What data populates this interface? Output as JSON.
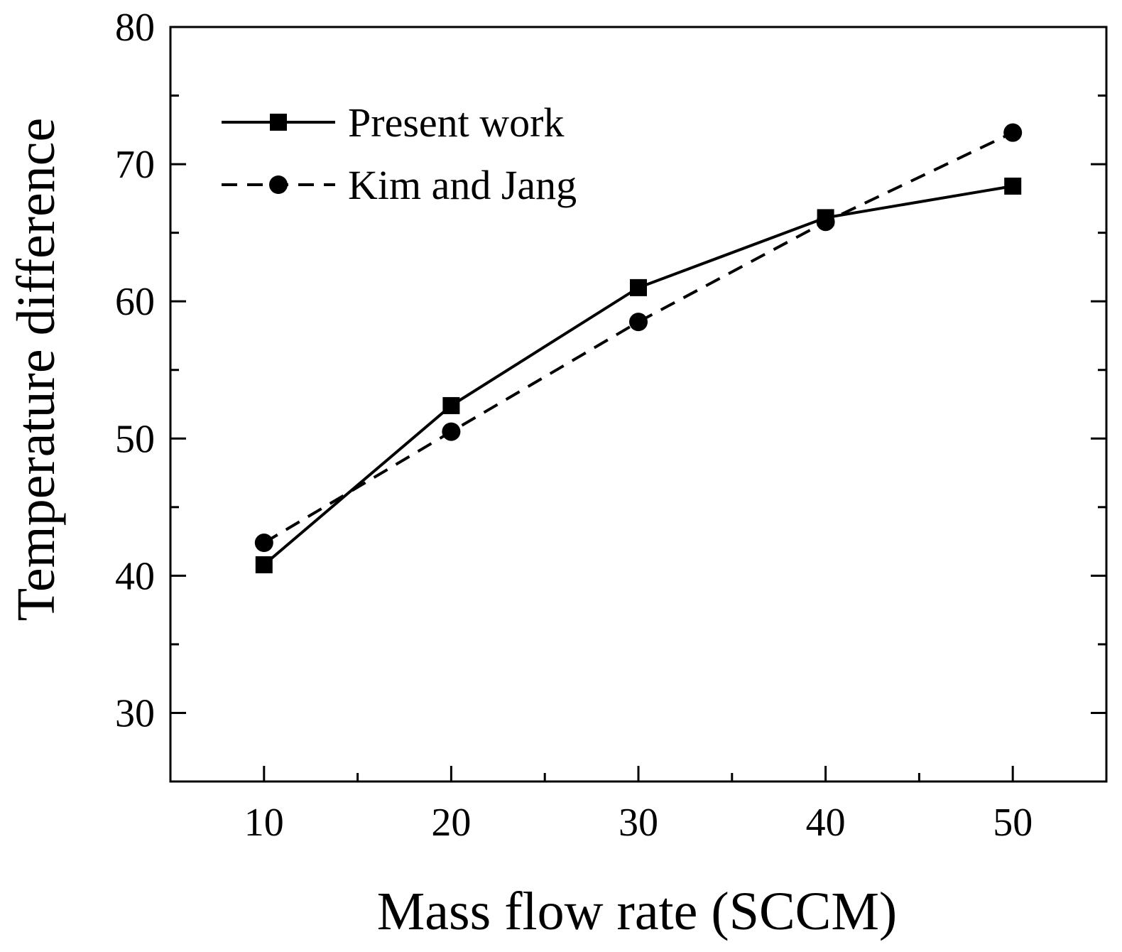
{
  "chart_data": {
    "type": "line",
    "title": "",
    "xlabel": "Mass flow rate (SCCM)",
    "ylabel": "Temperature difference",
    "xlim": [
      5,
      55
    ],
    "ylim": [
      25,
      80
    ],
    "x_ticks": [
      10,
      20,
      30,
      40,
      50
    ],
    "y_ticks": [
      30,
      40,
      50,
      60,
      70,
      80
    ],
    "legend_position": "top-left",
    "series": [
      {
        "name": "Present work",
        "style": "solid",
        "marker": "square",
        "x": [
          10,
          20,
          30,
          40,
          50
        ],
        "values": [
          40.8,
          52.4,
          61.0,
          66.1,
          68.4
        ]
      },
      {
        "name": "Kim and Jang",
        "style": "dashed",
        "marker": "circle",
        "x": [
          10,
          20,
          30,
          40,
          50
        ],
        "values": [
          42.4,
          50.5,
          58.5,
          65.8,
          72.3
        ]
      }
    ]
  }
}
